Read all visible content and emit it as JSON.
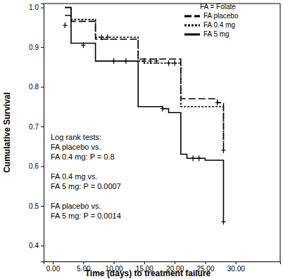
{
  "chart_data": {
    "type": "step",
    "x_label": "Time (days) to treatment failure",
    "y_label": "Cumulative Survival",
    "xlim": [
      -1.5,
      37.3
    ],
    "ylim": [
      0.36,
      1.01
    ],
    "xticks": [
      {
        "value": 0,
        "label": "0.00"
      },
      {
        "value": 5,
        "label": "5.00"
      },
      {
        "value": 10,
        "label": "10.00"
      },
      {
        "value": 15,
        "label": "15.00"
      },
      {
        "value": 20,
        "label": "20.00"
      },
      {
        "value": 25,
        "label": "25.00"
      },
      {
        "value": 30,
        "label": "30.00"
      }
    ],
    "yticks": [
      0.4,
      0.5,
      0.6,
      0.7,
      0.8,
      0.9,
      {
        "value": 1,
        "label": "1.0"
      }
    ],
    "grid": false,
    "legend": "upper right",
    "legend_title": "FA = Folate",
    "annotations": [
      [
        "Log rank tests:",
        "FA placebo vs.",
        "FA 0.4 mg: P = 0.8"
      ],
      [
        "FA 0.4 mg vs.",
        "FA 5 mg: P = 0.0007"
      ],
      [
        "FA placebo vs.",
        "FA 5 mg: P = 0.0014"
      ]
    ],
    "series": [
      {
        "name": "FA placebo",
        "color": "#000000",
        "line_style": "dashed",
        "x": [
          2,
          3,
          7,
          14,
          21,
          27,
          28
        ],
        "values": [
          0.98,
          0.965,
          0.92,
          0.87,
          0.77,
          0.76,
          0.64
        ],
        "censored": {
          "x": [
            15,
            16,
            17,
            27,
            28
          ],
          "values": [
            0.865,
            0.865,
            0.865,
            0.76,
            0.64
          ]
        }
      },
      {
        "name": "FA 0.4 mg",
        "color": "#000000",
        "line_style": "dotted",
        "x": [
          2,
          3,
          7,
          14,
          15,
          21,
          28
        ],
        "values": [
          1.0,
          0.97,
          0.925,
          0.865,
          0.86,
          0.75,
          0.66
        ],
        "censored": {
          "x": [
            8,
            9,
            19,
            20
          ],
          "values": [
            0.925,
            0.925,
            0.86,
            0.86
          ]
        }
      },
      {
        "name": "FA 5 mg",
        "color": "#000000",
        "line_style": "solid",
        "x": [
          2,
          3,
          7,
          14,
          18,
          19,
          21,
          22,
          25,
          28
        ],
        "values": [
          1.0,
          0.91,
          0.865,
          0.75,
          0.745,
          0.735,
          0.63,
          0.62,
          0.615,
          0.46
        ],
        "censored": {
          "x": [
            2,
            5,
            10,
            12,
            18,
            23,
            24,
            28
          ],
          "values": [
            0.955,
            0.905,
            0.865,
            0.865,
            0.745,
            0.62,
            0.62,
            0.46
          ]
        }
      }
    ]
  }
}
